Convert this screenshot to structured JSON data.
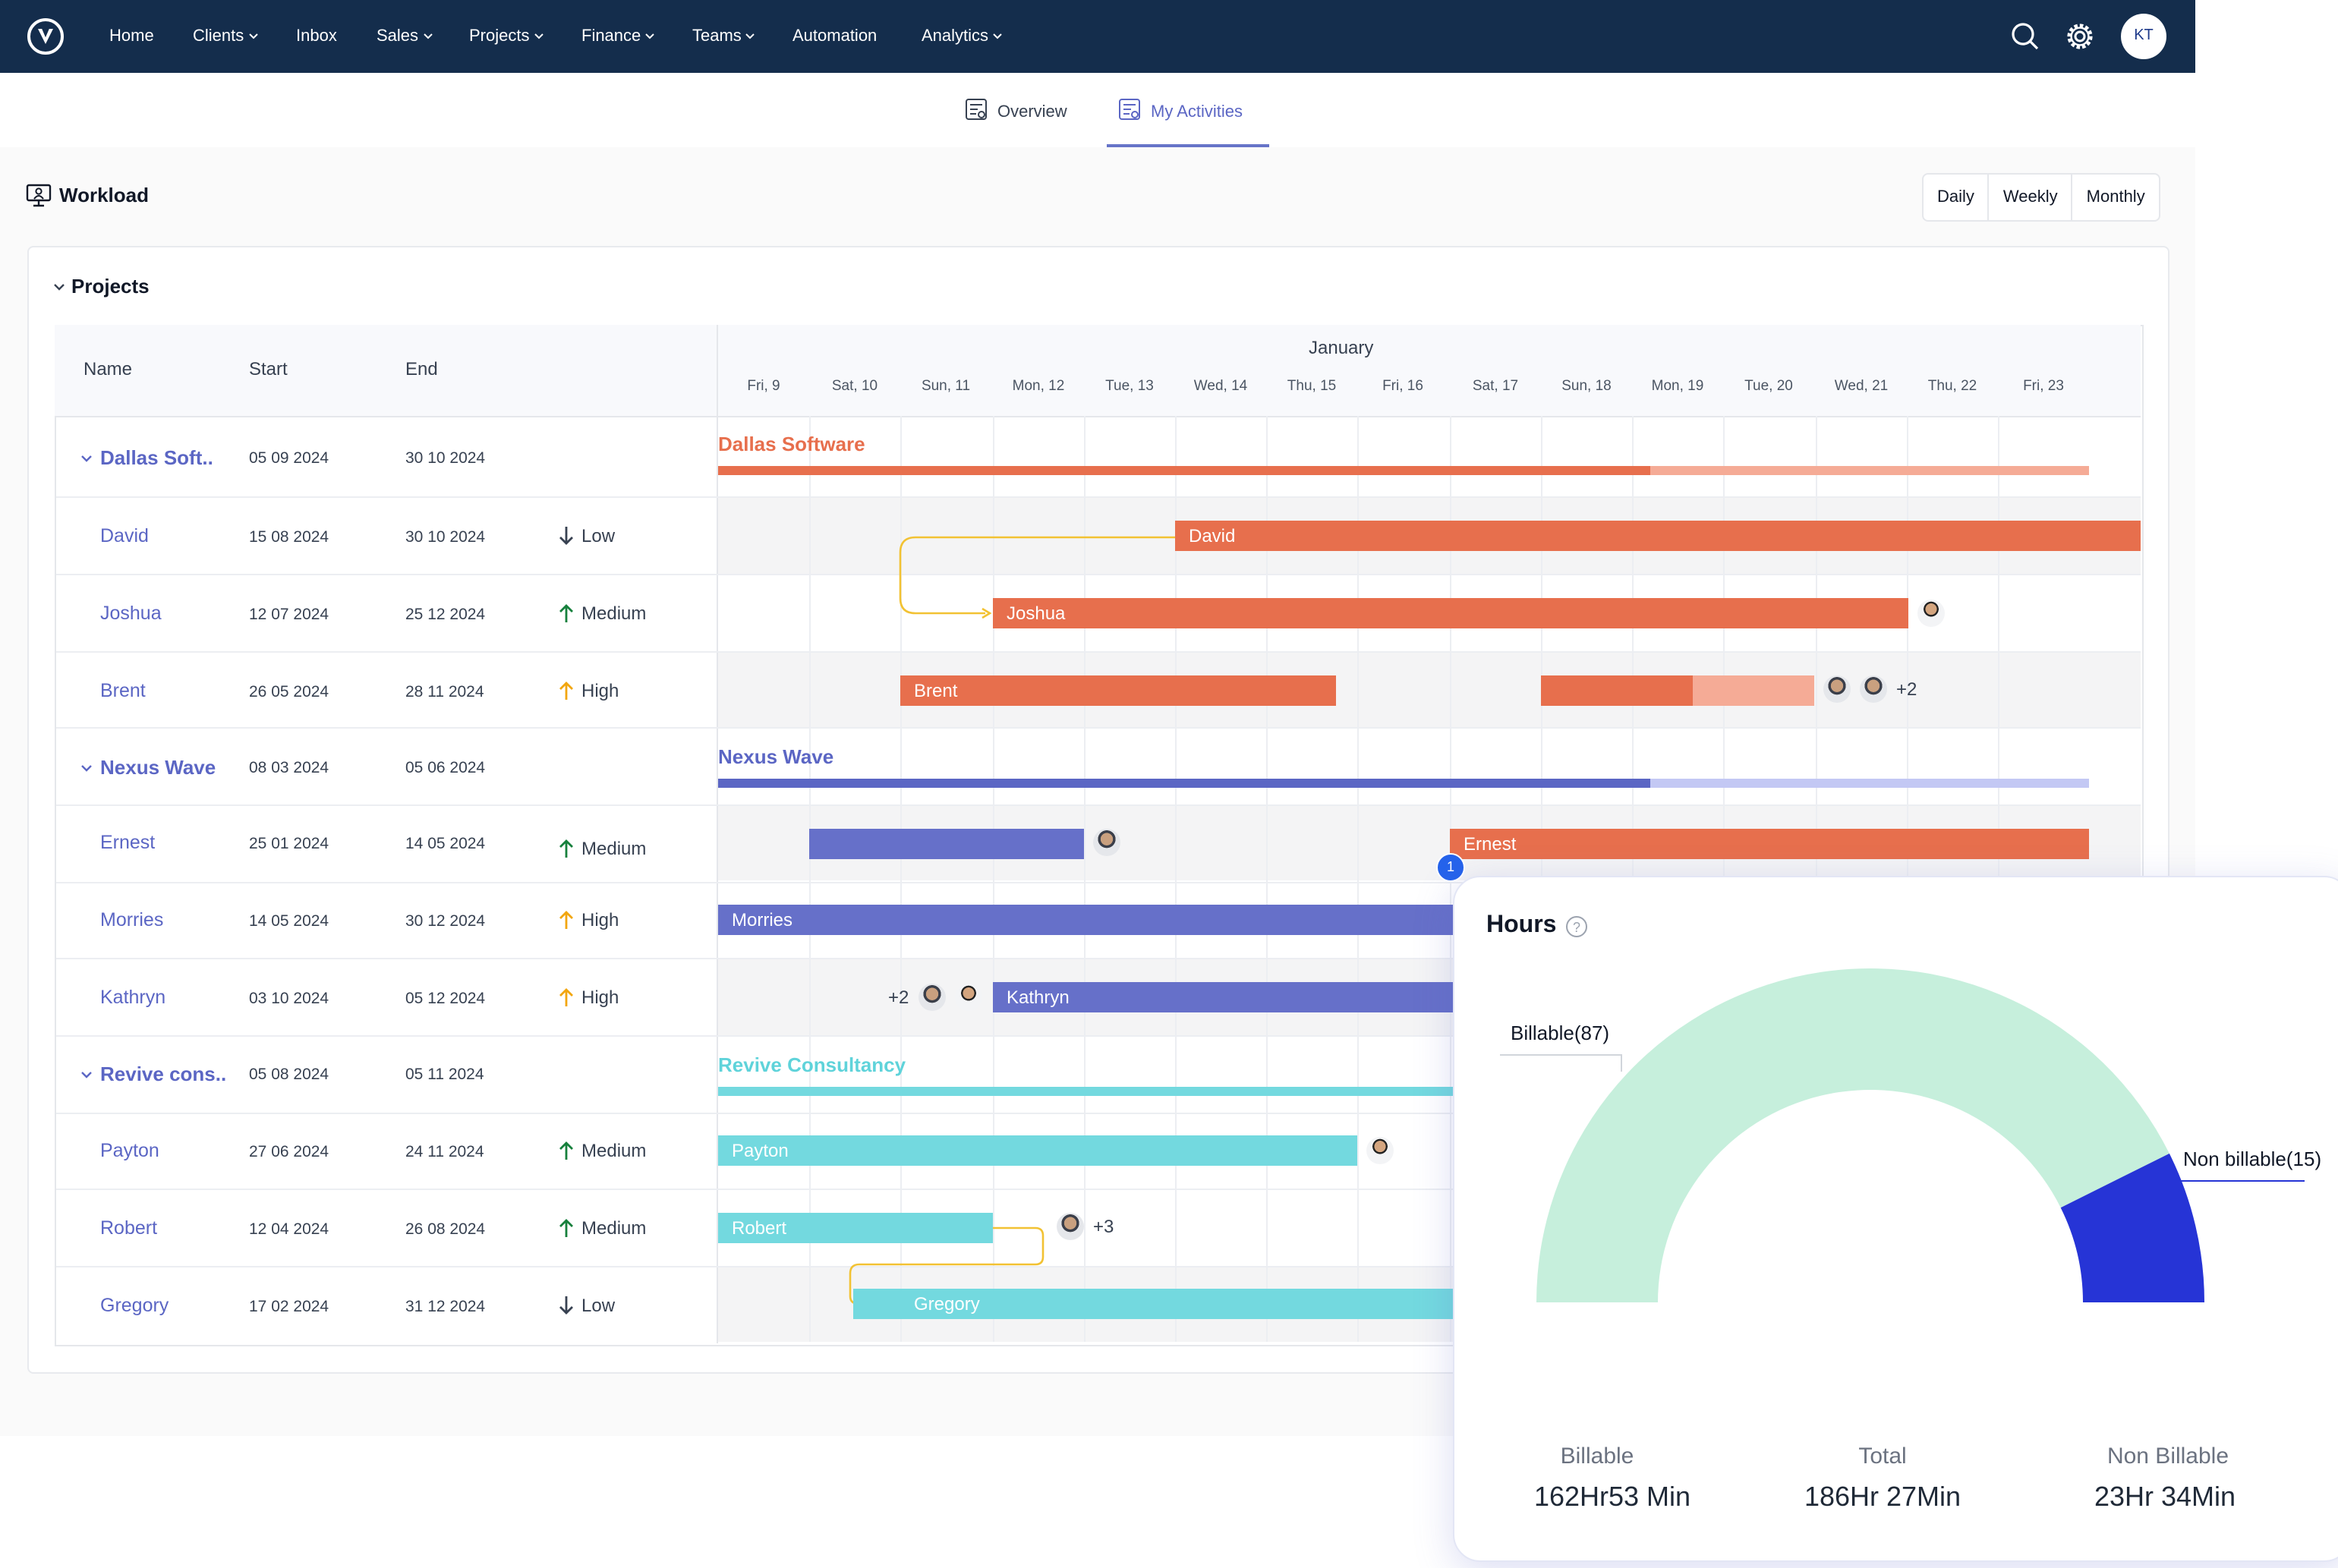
{
  "nav": {
    "items": [
      {
        "label": "Home",
        "dropdown": false
      },
      {
        "label": "Clients",
        "dropdown": true
      },
      {
        "label": "Inbox",
        "dropdown": false
      },
      {
        "label": "Sales",
        "dropdown": true
      },
      {
        "label": "Projects",
        "dropdown": true
      },
      {
        "label": "Finance",
        "dropdown": true
      },
      {
        "label": "Teams",
        "dropdown": true
      },
      {
        "label": "Automation",
        "dropdown": false
      },
      {
        "label": "Analytics",
        "dropdown": true
      }
    ],
    "user_initials": "KT",
    "colors": {
      "bar": "#142d4c"
    }
  },
  "tabs": {
    "overview": "Overview",
    "my_activities": "My Activities",
    "active": "my_activities"
  },
  "workload": {
    "title": "Workload",
    "periods": [
      "Daily",
      "Weekly",
      "Monthly"
    ]
  },
  "projects": {
    "title": "Projects",
    "headers": {
      "name": "Name",
      "start": "Start",
      "end": "End"
    },
    "month": "January",
    "days": [
      "Fri, 9",
      "Sat, 10",
      "Sun, 11",
      "Mon, 12",
      "Tue, 13",
      "Wed, 14",
      "Thu, 15",
      "Fri, 16",
      "Sat, 17",
      "Sun, 18",
      "Mon, 19",
      "Tue, 20",
      "Wed, 21",
      "Thu, 22",
      "Fri, 23"
    ],
    "rows": [
      {
        "name": "Dallas Soft..",
        "start": "05 09 2024",
        "end": "30 10 2024",
        "priority": "",
        "group": true
      },
      {
        "name": "David",
        "start": "15 08 2024",
        "end": "30 10 2024",
        "priority": "Low"
      },
      {
        "name": "Joshua",
        "start": "12 07 2024",
        "end": "25 12 2024",
        "priority": "Medium"
      },
      {
        "name": "Brent",
        "start": "26 05 2024",
        "end": "28 11 2024",
        "priority": "High"
      },
      {
        "name": "Nexus Wave",
        "start": "08 03 2024",
        "end": "05 06 2024",
        "priority": "",
        "group": true
      },
      {
        "name": "Ernest",
        "start": "25 01 2024",
        "end": "14 05 2024",
        "priority": "Medium"
      },
      {
        "name": "Morries",
        "start": "14 05 2024",
        "end": "30 12 2024",
        "priority": "High"
      },
      {
        "name": "Kathryn",
        "start": "03 10 2024",
        "end": "05 12 2024",
        "priority": "High"
      },
      {
        "name": "Revive cons..",
        "start": "05 08 2024",
        "end": "05 11 2024",
        "priority": "",
        "group": true
      },
      {
        "name": "Payton",
        "start": "27 06 2024",
        "end": "24 11 2024",
        "priority": "Medium"
      },
      {
        "name": "Robert",
        "start": "12 04 2024",
        "end": "26 08 2024",
        "priority": "Medium"
      },
      {
        "name": "Gregory",
        "start": "17 02 2024",
        "end": "31 12 2024",
        "priority": "Low"
      }
    ],
    "gantt": {
      "groups": {
        "dallas": "Dallas Software",
        "nexus": "Nexus Wave",
        "revive": "Revive Consultancy"
      },
      "bars": {
        "david": "David",
        "joshua": "Joshua",
        "brent": "Brent",
        "ernest": "Ernest",
        "morries": "Morries",
        "kathryn": "Kathryn",
        "payton": "Payton",
        "robert": "Robert",
        "gregory": "Gregory"
      },
      "extra_counts": {
        "brent": "+2",
        "kathryn": "+2",
        "robert": "+3"
      },
      "marker_ernest": "1",
      "colors": {
        "orange": "#e76f4d",
        "orange_light": "#f5ab96",
        "purple": "#6670c9",
        "purple_light": "#c3c8f4",
        "teal": "#73d9df"
      }
    }
  },
  "hours": {
    "title": "Hours",
    "billable_label": "Billable(87)",
    "non_billable_label": "Non billable(15)",
    "stats": [
      {
        "label": "Billable",
        "value": "162Hr53 Min"
      },
      {
        "label": "Total",
        "value": "186Hr 27Min"
      },
      {
        "label": "Non Billable",
        "value": "23Hr 34Min"
      }
    ],
    "chart_data": {
      "type": "pie",
      "title": "Hours",
      "categories": [
        "Billable",
        "Non billable"
      ],
      "values": [
        87,
        15
      ],
      "colors": [
        "#c6efdc",
        "#2634d6"
      ]
    }
  }
}
